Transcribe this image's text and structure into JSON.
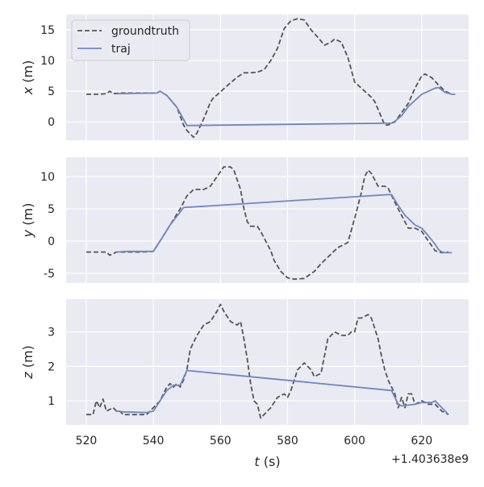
{
  "chart_data": {
    "type": "line",
    "x_offset_label": "+1.403638e9",
    "xlabel": "t (s)",
    "xlim": [
      514,
      634
    ],
    "x_ticks": [
      520,
      540,
      560,
      580,
      600,
      620
    ],
    "legend": {
      "location": "top-left",
      "entries": [
        "groundtruth",
        "traj"
      ]
    },
    "colors": {
      "groundtruth": "#555555",
      "traj": "#6b88c4",
      "plot_bg": "#eaeaf2",
      "grid": "#ffffff"
    },
    "panels": [
      {
        "ylabel_var": "x",
        "ylabel_unit": " (m)",
        "ylim": [
          -3,
          17.5
        ],
        "y_ticks": [
          0,
          5,
          10,
          15
        ],
        "series": [
          {
            "name": "groundtruth",
            "style": "dashed",
            "points": [
              [
                520,
                4.5
              ],
              [
                524,
                4.5
              ],
              [
                526,
                4.6
              ],
              [
                527,
                5
              ],
              [
                528,
                4.6
              ],
              [
                530,
                4.7
              ],
              [
                541,
                4.7
              ],
              [
                542,
                5
              ],
              [
                544,
                4.3
              ],
              [
                547,
                2.4
              ],
              [
                549,
                -0.5
              ],
              [
                550,
                -1.4
              ],
              [
                552,
                -2.5
              ],
              [
                553,
                -1.8
              ],
              [
                555,
                0.5
              ],
              [
                556,
                1.8
              ],
              [
                557,
                3.2
              ],
              [
                558,
                4
              ],
              [
                559,
                4.4
              ],
              [
                562,
                5.9
              ],
              [
                565,
                7.3
              ],
              [
                567,
                8
              ],
              [
                569,
                8
              ],
              [
                571,
                8.1
              ],
              [
                573,
                8.5
              ],
              [
                575,
                10
              ],
              [
                577,
                12
              ],
              [
                579,
                15.2
              ],
              [
                581,
                16.5
              ],
              [
                583,
                16.8
              ],
              [
                585,
                16.6
              ],
              [
                587,
                15
              ],
              [
                589,
                13.8
              ],
              [
                591,
                12.5
              ],
              [
                593,
                13
              ],
              [
                594,
                13.5
              ],
              [
                596,
                13
              ],
              [
                598,
                10.5
              ],
              [
                600,
                6.5
              ],
              [
                603,
                5
              ],
              [
                605,
                4
              ],
              [
                606,
                3.3
              ],
              [
                609,
                -0.5
              ],
              [
                610,
                -0.5
              ],
              [
                612,
                0
              ],
              [
                614,
                1.5
              ],
              [
                616,
                3
              ],
              [
                618,
                5.5
              ],
              [
                620,
                7.5
              ],
              [
                621,
                7.8
              ],
              [
                623,
                7.2
              ],
              [
                625,
                6
              ],
              [
                627,
                5
              ],
              [
                629,
                4.5
              ]
            ]
          },
          {
            "name": "traj",
            "style": "solid",
            "points": [
              [
                529,
                4.6
              ],
              [
                541,
                4.7
              ],
              [
                542,
                5
              ],
              [
                544,
                4.3
              ],
              [
                547,
                2.4
              ],
              [
                550,
                -0.6
              ],
              [
                611,
                -0.2
              ],
              [
                612,
                0.1
              ],
              [
                614,
                1
              ],
              [
                616,
                2.5
              ],
              [
                620,
                4.5
              ],
              [
                624,
                5.5
              ],
              [
                625,
                5.6
              ],
              [
                627,
                4.8
              ],
              [
                629,
                4.5
              ],
              [
                630,
                4.5
              ]
            ]
          }
        ]
      },
      {
        "ylabel_var": "y",
        "ylabel_unit": " (m)",
        "ylim": [
          -6.5,
          13
        ],
        "y_ticks": [
          -5,
          0,
          5,
          10
        ],
        "series": [
          {
            "name": "groundtruth",
            "style": "dashed",
            "points": [
              [
                520,
                -1.7
              ],
              [
                523,
                -1.7
              ],
              [
                526,
                -1.7
              ],
              [
                527,
                -2.2
              ],
              [
                529,
                -1.7
              ],
              [
                532,
                -1.7
              ],
              [
                536,
                -1.7
              ],
              [
                540,
                -1.6
              ],
              [
                542,
                0
              ],
              [
                545,
                2.5
              ],
              [
                548,
                5
              ],
              [
                550,
                7
              ],
              [
                552,
                8
              ],
              [
                555,
                8
              ],
              [
                557,
                8.5
              ],
              [
                559,
                10
              ],
              [
                561,
                11.5
              ],
              [
                563,
                11.5
              ],
              [
                564,
                11
              ],
              [
                566,
                8
              ],
              [
                567,
                5
              ],
              [
                568,
                3
              ],
              [
                569,
                2.3
              ],
              [
                571,
                2.3
              ],
              [
                572,
                1.5
              ],
              [
                574,
                -0.5
              ],
              [
                575,
                -1.5
              ],
              [
                576,
                -3
              ],
              [
                578,
                -4.7
              ],
              [
                580,
                -5.7
              ],
              [
                582,
                -5.9
              ],
              [
                585,
                -5.8
              ],
              [
                588,
                -4.7
              ],
              [
                590,
                -3.5
              ],
              [
                593,
                -2
              ],
              [
                595,
                -1
              ],
              [
                597,
                -0.5
              ],
              [
                598,
                -0.2
              ],
              [
                600,
                3.5
              ],
              [
                601,
                5.5
              ],
              [
                602,
                7.5
              ],
              [
                603,
                10
              ],
              [
                604,
                11
              ],
              [
                605,
                10.5
              ],
              [
                607,
                8.5
              ],
              [
                609,
                8.5
              ],
              [
                610,
                8.2
              ],
              [
                612,
                6
              ],
              [
                614,
                4
              ],
              [
                616,
                2
              ],
              [
                618,
                2
              ],
              [
                620,
                1.5
              ],
              [
                622,
                0
              ],
              [
                624,
                -1.5
              ],
              [
                626,
                -1.8
              ],
              [
                628,
                -1.7
              ]
            ]
          },
          {
            "name": "traj",
            "style": "solid",
            "points": [
              [
                529,
                -1.7
              ],
              [
                532,
                -1.6
              ],
              [
                540,
                -1.6
              ],
              [
                542,
                0
              ],
              [
                545,
                2.5
              ],
              [
                548,
                4.5
              ],
              [
                549,
                5.2
              ],
              [
                610,
                7.2
              ],
              [
                611,
                7.2
              ],
              [
                613,
                5.5
              ],
              [
                615,
                4
              ],
              [
                618,
                2.5
              ],
              [
                620,
                2
              ],
              [
                622,
                0.8
              ],
              [
                624,
                -0.5
              ],
              [
                625,
                -1.3
              ],
              [
                626,
                -1.7
              ],
              [
                627,
                -1.8
              ],
              [
                629,
                -1.8
              ]
            ]
          }
        ]
      },
      {
        "ylabel_var": "z",
        "ylabel_unit": " (m)",
        "ylim": [
          0.3,
          3.95
        ],
        "y_ticks": [
          1,
          2,
          3
        ],
        "series": [
          {
            "name": "groundtruth",
            "style": "dashed",
            "points": [
              [
                520,
                0.6
              ],
              [
                522,
                0.6
              ],
              [
                523,
                1
              ],
              [
                524,
                0.8
              ],
              [
                525,
                1.05
              ],
              [
                526,
                0.7
              ],
              [
                528,
                0.8
              ],
              [
                529,
                0.7
              ],
              [
                530,
                0.7
              ],
              [
                531,
                0.6
              ],
              [
                532,
                0.6
              ],
              [
                536,
                0.6
              ],
              [
                538,
                0.6
              ],
              [
                540,
                0.8
              ],
              [
                542,
                1
              ],
              [
                543,
                1.2
              ],
              [
                544,
                1.4
              ],
              [
                545,
                1.5
              ],
              [
                546,
                1.4
              ],
              [
                547,
                1.5
              ],
              [
                548,
                1.4
              ],
              [
                549,
                1.6
              ],
              [
                550,
                1.9
              ],
              [
                551,
                2.5
              ],
              [
                553,
                2.9
              ],
              [
                555,
                3.2
              ],
              [
                557,
                3.3
              ],
              [
                559,
                3.6
              ],
              [
                560,
                3.8
              ],
              [
                561,
                3.6
              ],
              [
                563,
                3.3
              ],
              [
                565,
                3.2
              ],
              [
                566,
                3.3
              ],
              [
                567,
                2.8
              ],
              [
                568,
                2.2
              ],
              [
                569,
                1.5
              ],
              [
                570,
                1
              ],
              [
                571,
                0.9
              ],
              [
                572,
                0.5
              ],
              [
                573,
                0.6
              ],
              [
                575,
                0.8
              ],
              [
                577,
                1.1
              ],
              [
                579,
                1.2
              ],
              [
                580,
                1.1
              ],
              [
                581,
                1.3
              ],
              [
                583,
                1.9
              ],
              [
                585,
                2.1
              ],
              [
                587,
                1.9
              ],
              [
                588,
                1.7
              ],
              [
                590,
                1.8
              ],
              [
                591,
                2.3
              ],
              [
                592,
                2.8
              ],
              [
                594,
                3
              ],
              [
                596,
                2.9
              ],
              [
                598,
                2.9
              ],
              [
                599,
                3
              ],
              [
                600,
                3
              ],
              [
                601,
                3.4
              ],
              [
                602,
                3.4
              ],
              [
                604,
                3.5
              ],
              [
                605,
                3.4
              ],
              [
                607,
                2.8
              ],
              [
                608,
                2.3
              ],
              [
                609,
                1.9
              ],
              [
                610,
                1.6
              ],
              [
                611,
                1.4
              ],
              [
                612,
                1.2
              ],
              [
                613,
                0.8
              ],
              [
                614,
                1.1
              ],
              [
                615,
                0.8
              ],
              [
                616,
                1.2
              ],
              [
                617,
                1.2
              ],
              [
                618,
                0.9
              ],
              [
                620,
                1
              ],
              [
                622,
                0.9
              ],
              [
                624,
                0.9
              ],
              [
                626,
                0.7
              ],
              [
                628,
                0.6
              ]
            ]
          },
          {
            "name": "traj",
            "style": "solid",
            "points": [
              [
                529,
                0.7
              ],
              [
                531,
                0.68
              ],
              [
                538,
                0.66
              ],
              [
                540,
                0.7
              ],
              [
                542,
                1
              ],
              [
                544,
                1.3
              ],
              [
                546,
                1.45
              ],
              [
                548,
                1.45
              ],
              [
                550,
                1.88
              ],
              [
                611,
                1.3
              ],
              [
                612,
                1.1
              ],
              [
                613,
                0.9
              ],
              [
                614,
                0.85
              ],
              [
                618,
                0.9
              ],
              [
                620,
                0.95
              ],
              [
                623,
                0.95
              ],
              [
                624,
                1
              ],
              [
                626,
                0.8
              ],
              [
                628,
                0.6
              ]
            ]
          }
        ]
      }
    ]
  }
}
